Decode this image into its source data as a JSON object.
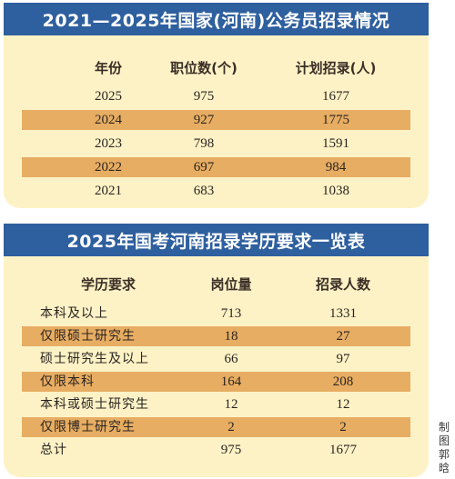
{
  "table1": {
    "title": "2021—2025年国家(河南)公务员招录情况",
    "headers": [
      "年份",
      "职位数(个)",
      "计划招录(人)"
    ],
    "rows": [
      [
        "2025",
        "975",
        "1677"
      ],
      [
        "2024",
        "927",
        "1775"
      ],
      [
        "2023",
        "798",
        "1591"
      ],
      [
        "2022",
        "697",
        "984"
      ],
      [
        "2021",
        "683",
        "1038"
      ]
    ]
  },
  "table2": {
    "title": "2025年国考河南招录学历要求一览表",
    "headers": [
      "学历要求",
      "岗位量",
      "招录人数"
    ],
    "rows": [
      [
        "本科及以上",
        "713",
        "1331"
      ],
      [
        "仅限硕士研究生",
        "18",
        "27"
      ],
      [
        "硕士研究生及以上",
        "66",
        "97"
      ],
      [
        "仅限本科",
        "164",
        "208"
      ],
      [
        "本科或硕士研究生",
        "12",
        "12"
      ],
      [
        "仅限博士研究生",
        "2",
        "2"
      ],
      [
        "总计",
        "975",
        "1677"
      ]
    ]
  },
  "credit": "制图郭晗",
  "colors": {
    "title_bar": "#2e5f9e",
    "card": "#fdf2c6",
    "stripe": "#e7ad62"
  }
}
